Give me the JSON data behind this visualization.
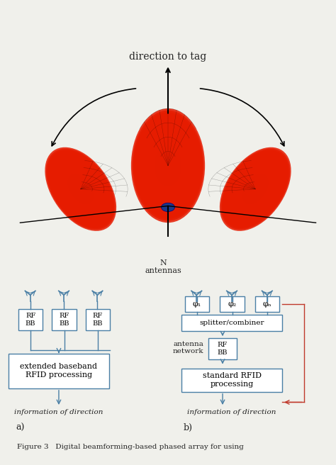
{
  "title": "direction to tag",
  "bg_color": "#f0f0eb",
  "diagram_bg": "#ffffff",
  "box_edge_color": "#4a7fa5",
  "arrow_color": "#4a7fa5",
  "red_arrow_color": "#c0392b",
  "text_color": "#222222",
  "label_a": "a)",
  "label_b": "b)",
  "box_a_text": "extended baseband\nRFID processing",
  "box_b1_text": "splitter/combiner",
  "box_b2_text": "RF\nBB",
  "box_b3_text": "standard RFID\nprocessing",
  "rfbb_text": "RF\nBB",
  "info_text": "information of direction",
  "antennas_label": "N\nantennas",
  "antenna_network_label": "antenna\nnetwork",
  "phi_labels": [
    "φ₁",
    "φ₂",
    "φₙ"
  ],
  "caption": "Figure 3   Digital beamforming-based phased array for using"
}
